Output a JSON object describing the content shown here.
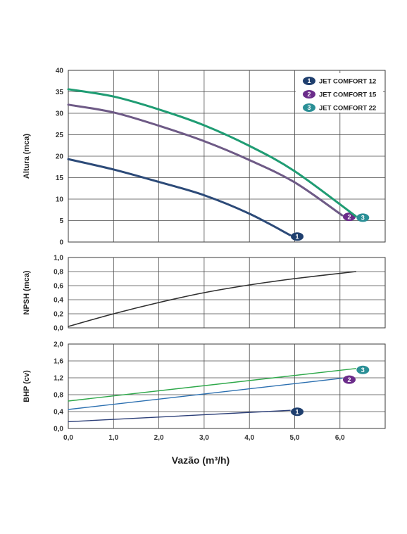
{
  "chart_data": [
    {
      "id": "altura",
      "type": "line",
      "ylabel": "Altura (mca)",
      "xlim": [
        0,
        7
      ],
      "ylim": [
        0,
        40
      ],
      "xticks": [
        0,
        1,
        2,
        3,
        4,
        5,
        6
      ],
      "yticks": [
        "0",
        "5",
        "10",
        "15",
        "20",
        "25",
        "30",
        "35",
        "40"
      ],
      "grid": true,
      "legend_position": "top-right",
      "legend": [
        {
          "marker": "1",
          "label": "JET COMFORT 12",
          "color": "#1f3f6e"
        },
        {
          "marker": "2",
          "label": "JET COMFORT 15",
          "color": "#6b2c8a"
        },
        {
          "marker": "3",
          "label": "JET COMFORT 22",
          "color": "#2a8f96"
        }
      ],
      "series": [
        {
          "marker": "1",
          "color": "#2c4a78",
          "x": [
            0,
            1,
            2,
            3,
            4,
            4.9
          ],
          "y": [
            19.3,
            16.9,
            14.0,
            10.9,
            6.6,
            1.6
          ]
        },
        {
          "marker": "2",
          "color": "#6e5a86",
          "x": [
            0,
            1,
            2,
            3,
            4,
            5,
            6.05
          ],
          "y": [
            32,
            30.2,
            27.1,
            23.5,
            19.1,
            13.9,
            6.2
          ]
        },
        {
          "marker": "3",
          "color": "#1f9c73",
          "x": [
            0,
            1,
            2,
            3,
            4,
            5,
            6.35
          ],
          "y": [
            35.6,
            33.9,
            30.9,
            27.2,
            22.4,
            16.5,
            6.0
          ]
        }
      ]
    },
    {
      "id": "npsh",
      "type": "line",
      "ylabel": "NPSH (mca)",
      "xlim": [
        0,
        7
      ],
      "ylim": [
        0,
        1.0
      ],
      "yticks": [
        "0,0",
        "0,2",
        "0,4",
        "0,6",
        "0,8",
        "1,0"
      ],
      "grid": true,
      "series": [
        {
          "color": "#2f2f2f",
          "x": [
            0,
            1,
            2,
            3,
            4,
            5,
            6.35
          ],
          "y": [
            0.02,
            0.2,
            0.36,
            0.5,
            0.61,
            0.7,
            0.8
          ]
        }
      ]
    },
    {
      "id": "bhp",
      "type": "line",
      "ylabel": "BHP (cv)",
      "xlabel": "Vazão (m³/h)",
      "xlim": [
        0,
        7
      ],
      "ylim": [
        0,
        2.0
      ],
      "yticks": [
        "0,0",
        "0,4",
        "0,8",
        "1,2",
        "1,6",
        "2,0"
      ],
      "xticks": [
        "0,0",
        "1,0",
        "2,0",
        "3,0",
        "4,0",
        "5,0",
        "6,0"
      ],
      "grid": true,
      "series": [
        {
          "marker": "1",
          "color": "#2c3f78",
          "x": [
            0,
            4.9
          ],
          "y": [
            0.16,
            0.43
          ]
        },
        {
          "marker": "2",
          "color": "#2b6fb0",
          "x": [
            0,
            6.05
          ],
          "y": [
            0.45,
            1.19
          ]
        },
        {
          "marker": "3",
          "color": "#2ea84a",
          "x": [
            0,
            6.35
          ],
          "y": [
            0.65,
            1.42
          ]
        }
      ]
    }
  ],
  "marker_colors": {
    "1": "#1f3f6e",
    "2": "#6b2c8a",
    "3": "#2a8f96"
  }
}
